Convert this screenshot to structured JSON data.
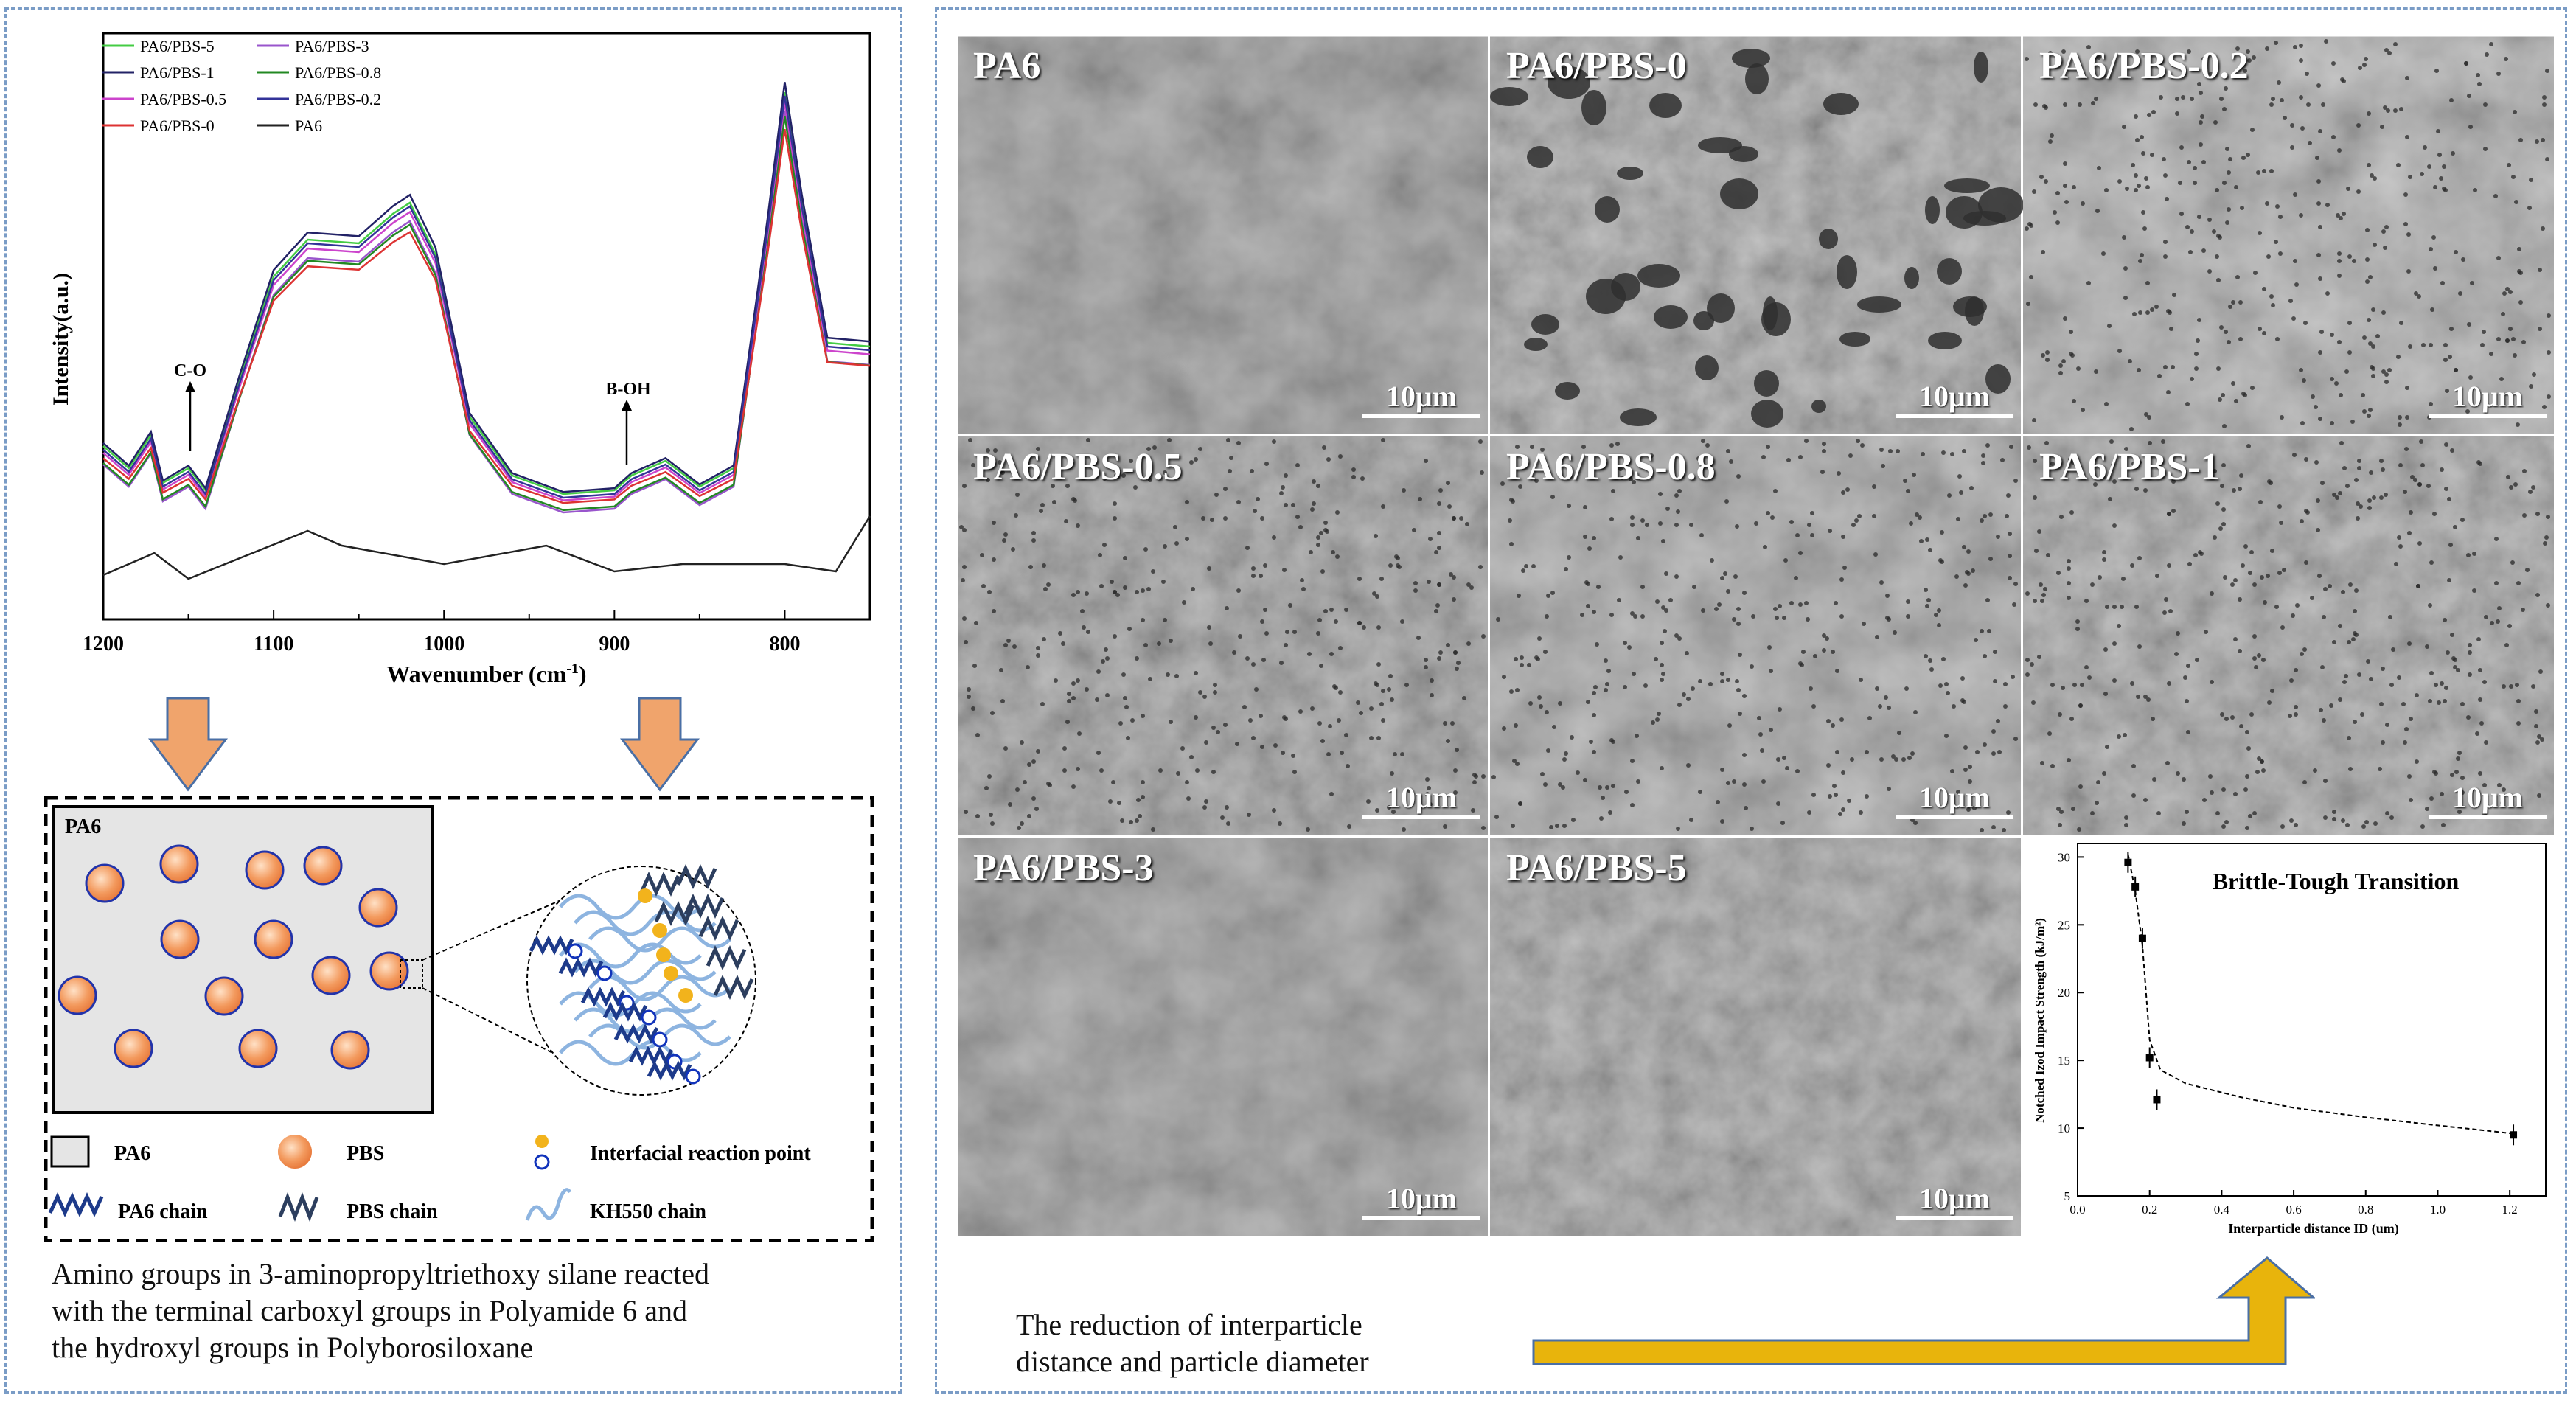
{
  "colors": {
    "panel_border": "#7a9cc6",
    "arrow_fill": "#f0a46c",
    "arrow_yellow": "#e8b40c",
    "pbs_particle": "#f08a4b",
    "particle_ring": "#2233aa"
  },
  "ftir": {
    "xlabel": "Wavenumber (cm",
    "xlabel_sup": "-1",
    "xlabel_end": ")",
    "ylabel": "Intensity(a.u.)",
    "annotations": [
      "C-O",
      "B-OH"
    ],
    "chart_data": {
      "type": "line",
      "x_ticks": [
        1200,
        1100,
        1000,
        900,
        800
      ],
      "xlim": [
        1200,
        750
      ],
      "legend": [
        {
          "name": "PA6/PBS-5",
          "color": "#44cc44"
        },
        {
          "name": "PA6/PBS-3",
          "color": "#9955cc"
        },
        {
          "name": "PA6/PBS-1",
          "color": "#222266"
        },
        {
          "name": "PA6/PBS-0.8",
          "color": "#228822"
        },
        {
          "name": "PA6/PBS-0.5",
          "color": "#cc44cc"
        },
        {
          "name": "PA6/PBS-0.2",
          "color": "#333399"
        },
        {
          "name": "PA6/PBS-0",
          "color": "#dd3333"
        },
        {
          "name": "PA6",
          "color": "#222222"
        }
      ]
    }
  },
  "schematic": {
    "box_label": "PA6",
    "legend": {
      "pa6": "PA6",
      "pbs": "PBS",
      "interfacial": "Interfacial reaction point",
      "pa6_chain": "PA6 chain",
      "pbs_chain": "PBS chain",
      "kh550_chain": "KH550 chain"
    }
  },
  "left_caption": [
    "Amino groups in 3-aminopropyltriethoxy silane reacted",
    "with the terminal carboxyl groups in Polyamide 6 and",
    "the hydroxyl groups in Polyborosiloxane"
  ],
  "sem": {
    "scale_label": "10μm",
    "labels": [
      "PA6",
      "PA6/PBS-0",
      "PA6/PBS-0.2",
      "PA6/PBS-0.5",
      "PA6/PBS-0.8",
      "PA6/PBS-1",
      "PA6/PBS-3",
      "PA6/PBS-5"
    ]
  },
  "inset": {
    "title": "Brittle-Tough Transition",
    "ylabel": "Notched Izod Impact Strength (kJ/m²)",
    "xlabel": "Interparticle distance ID (um)",
    "chart_data": {
      "type": "scatter",
      "title": "Brittle-Tough Transition",
      "xlabel": "Interparticle distance ID (um)",
      "ylabel": "Notched Izod Impact Strength (kJ/m²)",
      "xlim": [
        0.0,
        1.3
      ],
      "ylim": [
        5,
        31
      ],
      "x_ticks": [
        "0.0",
        "0.2",
        "0.4",
        "0.6",
        "0.8",
        "1.0",
        "1.2"
      ],
      "y_ticks": [
        "5",
        "10",
        "15",
        "20",
        "25",
        "30"
      ],
      "points": [
        {
          "x": 0.14,
          "y": 29.6
        },
        {
          "x": 0.16,
          "y": 27.8
        },
        {
          "x": 0.18,
          "y": 24.0
        },
        {
          "x": 0.2,
          "y": 15.2
        },
        {
          "x": 0.22,
          "y": 12.1
        },
        {
          "x": 1.21,
          "y": 9.5
        }
      ]
    }
  },
  "right_caption": [
    "The reduction of interparticle",
    "distance and particle  diameter"
  ]
}
